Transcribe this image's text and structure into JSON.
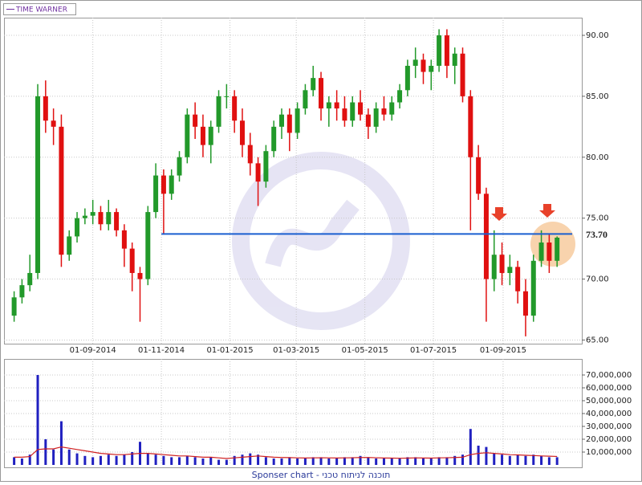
{
  "chart_data": {
    "type": "candlestick",
    "legend": "TIME WARNER",
    "x": [
      "23-06-2014",
      "30-06-2014",
      "07-07-2014",
      "14-07-2014",
      "21-07-2014",
      "28-07-2014",
      "04-08-2014",
      "11-08-2014",
      "18-08-2014",
      "25-08-2014",
      "01-09-2014",
      "08-09-2014",
      "15-09-2014",
      "22-09-2014",
      "29-09-2014",
      "06-10-2014",
      "13-10-2014",
      "20-10-2014",
      "27-10-2014",
      "03-11-2014",
      "10-11-2014",
      "17-11-2014",
      "24-11-2014",
      "01-12-2014",
      "08-12-2014",
      "15-12-2014",
      "22-12-2014",
      "29-12-2014",
      "05-01-2015",
      "12-01-2015",
      "19-01-2015",
      "26-01-2015",
      "02-02-2015",
      "09-02-2015",
      "16-02-2015",
      "23-02-2015",
      "02-03-2015",
      "09-03-2015",
      "16-03-2015",
      "23-03-2015",
      "30-03-2015",
      "06-04-2015",
      "13-04-2015",
      "20-04-2015",
      "27-04-2015",
      "04-05-2015",
      "11-05-2015",
      "18-05-2015",
      "25-05-2015",
      "01-06-2015",
      "08-06-2015",
      "15-06-2015",
      "22-06-2015",
      "29-06-2015",
      "06-07-2015",
      "13-07-2015",
      "20-07-2015",
      "27-07-2015",
      "03-08-2015",
      "10-08-2015",
      "17-08-2015",
      "24-08-2015",
      "31-08-2015",
      "07-09-2015",
      "14-09-2015",
      "21-09-2015",
      "28-09-2015",
      "05-10-2015",
      "12-10-2015",
      "19-10-2015"
    ],
    "open": [
      67,
      68.5,
      69.5,
      70.5,
      85,
      83,
      82.5,
      72,
      73.5,
      75,
      75.2,
      75.5,
      74.5,
      75.5,
      74,
      72.5,
      70.5,
      70,
      75.5,
      78.5,
      77,
      78.5,
      80,
      83.5,
      82.5,
      81,
      82.5,
      85,
      85,
      83,
      81,
      79.5,
      78,
      80.5,
      82.5,
      83.5,
      82,
      84,
      85.5,
      86.5,
      84,
      84.5,
      84,
      83,
      84.5,
      83.5,
      82.5,
      84,
      83.5,
      84.5,
      85.5,
      87.5,
      88,
      87,
      87.5,
      90,
      87.5,
      88.5,
      85,
      80,
      77,
      70,
      72,
      70.5,
      71,
      69,
      67,
      71.5,
      73,
      71.5
    ],
    "high": [
      69,
      70,
      72,
      86,
      86.3,
      84,
      83.5,
      74,
      75.5,
      75.8,
      76.5,
      76,
      76.5,
      75.8,
      74.5,
      73,
      71,
      76,
      79.5,
      79,
      79,
      80.5,
      84,
      84.5,
      83.5,
      83,
      85.5,
      86,
      85.5,
      84,
      82,
      80,
      81,
      83,
      84,
      84,
      84.5,
      86,
      87.5,
      87,
      85,
      85.5,
      85,
      85,
      85.5,
      84,
      84.5,
      85,
      85,
      86,
      88,
      89,
      88.5,
      88,
      90.5,
      90.5,
      89,
      89,
      85.5,
      81,
      77.5,
      74,
      73,
      72,
      71.5,
      70,
      72,
      74,
      73.7,
      73.5
    ],
    "low": [
      66.5,
      68,
      69,
      70,
      82,
      81,
      71,
      71.5,
      73,
      74.5,
      74.5,
      74,
      74,
      73.5,
      71,
      69,
      66.5,
      69.5,
      75,
      73.7,
      76.5,
      78,
      79.5,
      81.5,
      80,
      79.5,
      82,
      84,
      82,
      80,
      78.5,
      76,
      77.5,
      80,
      81.5,
      80.5,
      81.5,
      83.5,
      85,
      83,
      82.5,
      83,
      82.5,
      82.5,
      83,
      81.5,
      82,
      83,
      83,
      84,
      85,
      86.5,
      86,
      85.5,
      87,
      86.5,
      86,
      84.5,
      74,
      76.5,
      66.5,
      69,
      69.5,
      69.5,
      68,
      65.3,
      66.5,
      71,
      70.5,
      71
    ],
    "close": [
      68.5,
      69.5,
      70.5,
      85,
      83,
      82.5,
      72,
      73.5,
      75,
      75.2,
      75.5,
      74.5,
      75.5,
      74,
      72.5,
      70.5,
      70,
      75.5,
      78.5,
      77,
      78.5,
      80,
      83.5,
      82.5,
      81,
      82.5,
      85,
      85,
      83,
      81,
      79.5,
      78,
      80.5,
      82.5,
      83.5,
      82,
      84,
      85.5,
      86.5,
      84,
      84.5,
      84,
      83,
      84.5,
      83.5,
      82.5,
      84,
      83.5,
      84.5,
      85.5,
      87.5,
      88,
      87,
      87.5,
      90,
      87.5,
      88.5,
      85,
      80,
      77,
      70,
      72,
      70.5,
      71,
      69,
      67,
      71.5,
      73,
      71.5,
      73.4
    ],
    "up_color": "#22992a",
    "down_color": "#e01010",
    "xlim": [
      "14-06-2014",
      "10-11-2015"
    ],
    "xticks": [
      "01-09-2014",
      "01-11-2014",
      "01-01-2015",
      "01-03-2015",
      "01-05-2015",
      "01-07-2015",
      "01-09-2015"
    ],
    "ylim": [
      64.7,
      91.45
    ],
    "yticks": [
      {
        "value": 65,
        "label": "65.00"
      },
      {
        "value": 70,
        "label": "70.00"
      },
      {
        "value": 75,
        "label": "75.00"
      },
      {
        "value": 80,
        "label": "80.00"
      },
      {
        "value": 85,
        "label": "85.00"
      },
      {
        "value": 90,
        "label": "90.00"
      }
    ],
    "annotation": {
      "value": 73.7,
      "label": "73.70",
      "from": "01-11-2014",
      "color": "#1a5fd0"
    },
    "volume": {
      "type": "bar",
      "color": "#2020c0",
      "ma_color": "#d02020",
      "values": [
        6000000,
        5000000,
        8000000,
        70000000,
        20000000,
        12000000,
        34000000,
        12000000,
        9000000,
        7000000,
        6000000,
        7000000,
        8000000,
        7000000,
        8000000,
        10000000,
        18000000,
        9000000,
        8000000,
        7000000,
        6000000,
        6000000,
        7000000,
        6000000,
        5000000,
        6000000,
        4000000,
        4000000,
        7000000,
        8000000,
        9000000,
        8000000,
        6000000,
        5000000,
        5000000,
        6000000,
        5000000,
        5000000,
        6000000,
        6000000,
        5000000,
        5000000,
        6000000,
        6000000,
        7000000,
        6000000,
        5000000,
        5000000,
        5000000,
        5000000,
        6000000,
        6000000,
        5000000,
        5000000,
        6000000,
        6000000,
        7000000,
        8000000,
        28000000,
        15000000,
        14000000,
        9000000,
        8000000,
        7000000,
        8000000,
        7000000,
        8000000,
        7000000,
        6000000,
        6000000
      ],
      "ma": [
        6000000,
        6000000,
        6500000,
        12000000,
        12500000,
        12500000,
        14000000,
        13000000,
        12000000,
        11000000,
        10000000,
        9000000,
        8500000,
        8000000,
        8000000,
        8500000,
        9000000,
        9000000,
        8500000,
        8000000,
        7500000,
        7000000,
        7000000,
        6500000,
        6000000,
        6000000,
        5500000,
        5000000,
        5500000,
        6000000,
        6500000,
        7000000,
        6500000,
        6000000,
        5800000,
        5700000,
        5500000,
        5400000,
        5500000,
        5600000,
        5500000,
        5400000,
        5500000,
        5600000,
        5800000,
        5800000,
        5600000,
        5400000,
        5300000,
        5200000,
        5300000,
        5500000,
        5400000,
        5300000,
        5500000,
        5600000,
        5800000,
        6000000,
        8000000,
        9000000,
        9500000,
        9000000,
        8500000,
        8000000,
        7800000,
        7500000,
        7300000,
        7000000,
        6800000,
        6600000
      ],
      "ylim": [
        0,
        82500000
      ],
      "yticks": [
        {
          "value": 10000000,
          "label": "10,000,000"
        },
        {
          "value": 20000000,
          "label": "20,000,000"
        },
        {
          "value": 30000000,
          "label": "30,000,000"
        },
        {
          "value": 40000000,
          "label": "40,000,000"
        },
        {
          "value": 50000000,
          "label": "50,000,000"
        },
        {
          "value": 60000000,
          "label": "60,000,000"
        },
        {
          "value": 70000000,
          "label": "70,000,000"
        }
      ]
    }
  },
  "footer": "Sponser chart - תוכנה לניתוח טכני"
}
